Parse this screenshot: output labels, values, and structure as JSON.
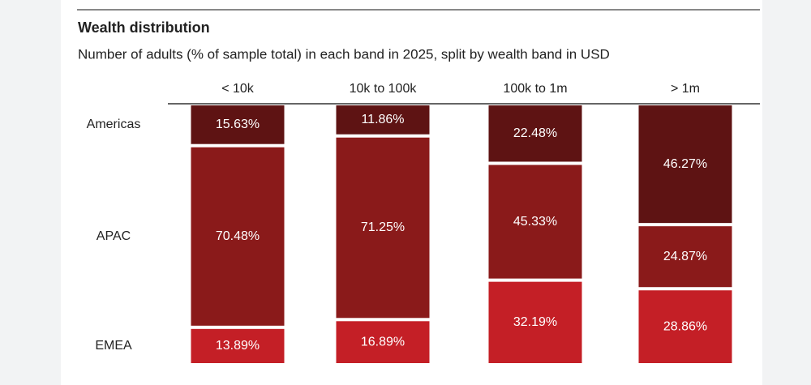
{
  "chart_data": {
    "type": "stacked-column",
    "title": "Wealth distribution",
    "subtitle": "Number of adults (% of sample total) in each band in 2025, split by wealth band in USD",
    "categories": [
      "< 10k",
      "10k to 100k",
      "100k to 1m",
      "> 1m"
    ],
    "series": [
      {
        "name": "Americas",
        "color": "#5e1313",
        "values": [
          15.63,
          11.86,
          22.48,
          46.27
        ],
        "value_labels": [
          "15.63%",
          "11.86%",
          "22.48%",
          "46.27%"
        ]
      },
      {
        "name": "APAC",
        "color": "#8a1a1a",
        "values": [
          70.48,
          71.25,
          45.33,
          24.87
        ],
        "value_labels": [
          "70.48%",
          "71.25%",
          "45.33%",
          "24.87%"
        ]
      },
      {
        "name": "EMEA",
        "color": "#c41f26",
        "values": [
          13.89,
          16.89,
          32.19,
          28.86
        ],
        "value_labels": [
          "13.89%",
          "16.89%",
          "32.19%",
          "28.86%"
        ]
      }
    ]
  }
}
